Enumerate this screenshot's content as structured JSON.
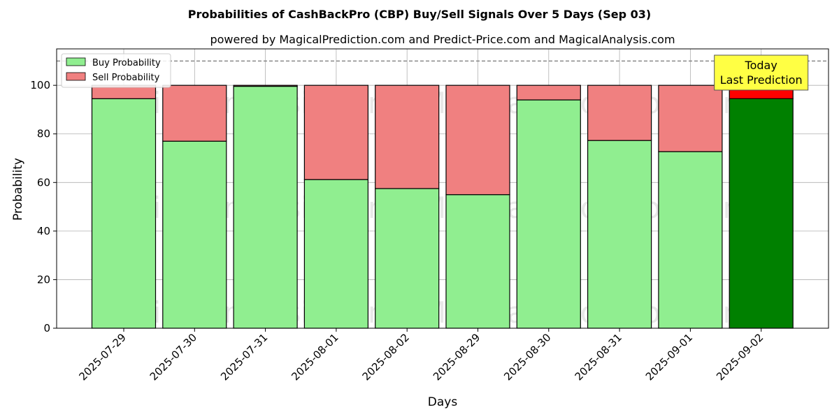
{
  "chart_data": {
    "type": "bar",
    "stacked": true,
    "title": "Probabilities of CashBackPro (CBP) Buy/Sell Signals Over 5 Days (Sep 03)",
    "subtitle": "powered by MagicalPrediction.com and Predict-Price.com and MagicalAnalysis.com",
    "xlabel": "Days",
    "ylabel": "Probability",
    "ylim": [
      0,
      115
    ],
    "yticks": [
      0,
      20,
      40,
      60,
      80,
      100
    ],
    "reference_line": 110,
    "grid": true,
    "legend_position": "top-left",
    "categories": [
      "2025-07-29",
      "2025-07-30",
      "2025-07-31",
      "2025-08-01",
      "2025-08-02",
      "2025-08-29",
      "2025-08-30",
      "2025-08-31",
      "2025-09-01",
      "2025-09-02"
    ],
    "series": [
      {
        "name": "Buy Probability",
        "color": "#90ee90",
        "highlight_color": "#008000",
        "values": [
          94.5,
          77.0,
          99.6,
          61.2,
          57.5,
          55.0,
          94.0,
          77.3,
          72.7,
          94.5
        ]
      },
      {
        "name": "Sell Probability",
        "color": "#f08080",
        "highlight_color": "#ff0000",
        "values": [
          5.5,
          23.0,
          0.4,
          38.8,
          42.5,
          45.0,
          6.0,
          22.7,
          27.3,
          5.5
        ]
      }
    ],
    "highlight_index": 9,
    "annotation": {
      "line1": "Today",
      "line2": "Last Prediction",
      "color": "#ffff44"
    },
    "watermarks": [
      "MagicalAnalysis.com",
      "MagicalPrediction.com"
    ]
  }
}
